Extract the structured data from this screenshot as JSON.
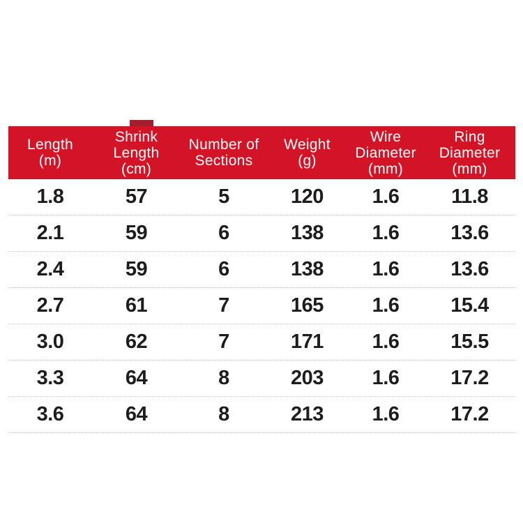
{
  "colors": {
    "header_bg": "#d31426",
    "header_text": "#ffffff",
    "tab_dark_red": "#9f2130",
    "body_text": "#1d1d1d",
    "divider": "#c2c2c2",
    "background": "#ffffff"
  },
  "table": {
    "columns": [
      {
        "line1": "Length",
        "line2": "(m)"
      },
      {
        "line1": "Shrink",
        "line2": "Length",
        "line3": "(cm)"
      },
      {
        "line1": "Number of",
        "line2": "Sections"
      },
      {
        "line1": "Weight",
        "line2": "(g)"
      },
      {
        "line1": "Wire",
        "line2": "Diameter",
        "line3": "(mm)"
      },
      {
        "line1": "Ring",
        "line2": "Diameter",
        "line3": "(mm)"
      }
    ],
    "rows": [
      [
        "1.8",
        "57",
        "5",
        "120",
        "1.6",
        "11.8"
      ],
      [
        "2.1",
        "59",
        "6",
        "138",
        "1.6",
        "13.6"
      ],
      [
        "2.4",
        "59",
        "6",
        "138",
        "1.6",
        "13.6"
      ],
      [
        "2.7",
        "61",
        "7",
        "165",
        "1.6",
        "15.4"
      ],
      [
        "3.0",
        "62",
        "7",
        "171",
        "1.6",
        "15.5"
      ],
      [
        "3.3",
        "64",
        "8",
        "203",
        "1.6",
        "17.2"
      ],
      [
        "3.6",
        "64",
        "8",
        "213",
        "1.6",
        "17.2"
      ]
    ]
  }
}
